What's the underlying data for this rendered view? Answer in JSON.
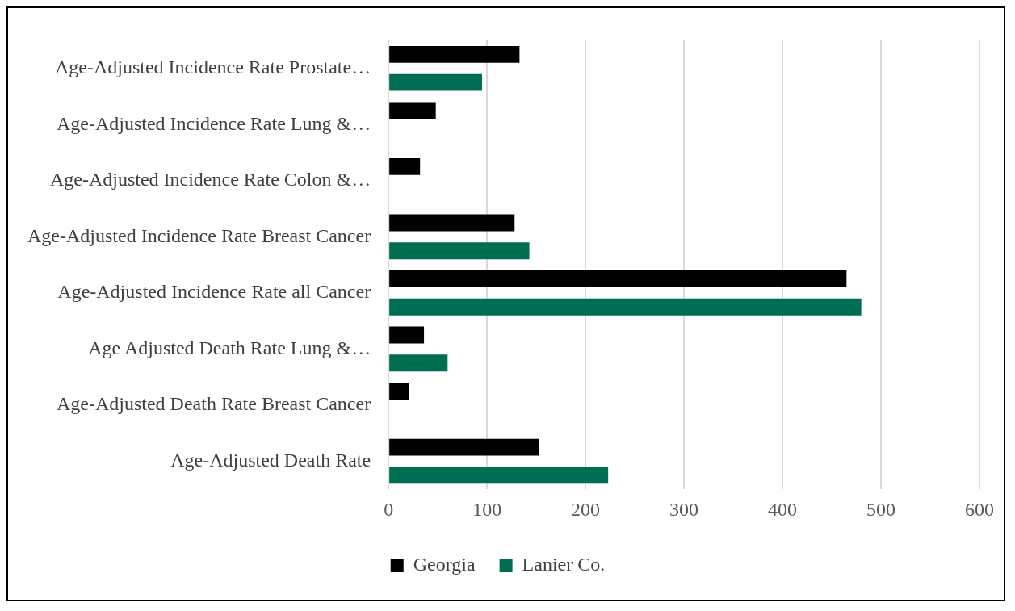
{
  "chart_data": {
    "type": "bar",
    "orientation": "horizontal",
    "categories": [
      "Age-Adjusted Incidence Rate Prostate…",
      "Age-Adjusted Incidence Rate Lung &…",
      "Age-Adjusted Incidence Rate Colon &…",
      "Age-Adjusted Incidence Rate Breast Cancer",
      "Age-Adjusted Incidence Rate all Cancer",
      "Age Adjusted Death Rate Lung &…",
      "Age-Adjusted Death Rate Breast Cancer",
      "Age-Adjusted Death Rate"
    ],
    "series": [
      {
        "name": "Georgia",
        "color": "#000000",
        "values": [
          133,
          48,
          32,
          128,
          465,
          36,
          21,
          153
        ]
      },
      {
        "name": "Lanier Co.",
        "color": "#006e52",
        "values": [
          95,
          null,
          null,
          143,
          480,
          60,
          null,
          223
        ]
      }
    ],
    "xlim": [
      0,
      600
    ],
    "xticks": [
      0,
      100,
      200,
      300,
      400,
      500,
      600
    ],
    "grid": "x",
    "legend": "bottom"
  }
}
